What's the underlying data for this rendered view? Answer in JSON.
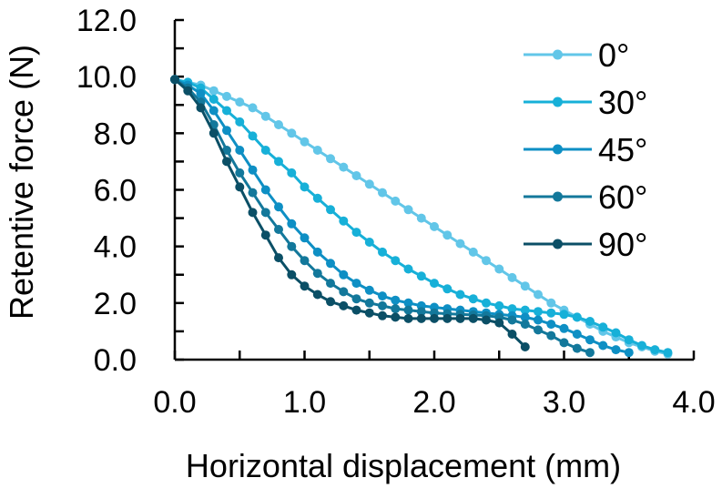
{
  "chart_data": {
    "type": "line",
    "title": "",
    "xlabel": "Horizontal displacement (mm)",
    "ylabel": "Retentive force (N)",
    "xlim": [
      0,
      4
    ],
    "ylim": [
      0,
      12
    ],
    "xticks": [
      0,
      1,
      2,
      3,
      4
    ],
    "yticks": [
      0,
      2,
      4,
      6,
      8,
      10,
      12
    ],
    "xtick_labels": [
      "0.0",
      "1.0",
      "2.0",
      "3.0",
      "4.0"
    ],
    "ytick_labels": [
      "0.0",
      "2.0",
      "4.0",
      "6.0",
      "8.0",
      "10.0",
      "12.0"
    ],
    "grid": false,
    "legend_position": "top-right",
    "series": [
      {
        "name": "0°",
        "color": "#62c6e8",
        "x": [
          0,
          0.1,
          0.2,
          0.3,
          0.4,
          0.5,
          0.6,
          0.7,
          0.8,
          0.9,
          1.0,
          1.1,
          1.2,
          1.3,
          1.4,
          1.5,
          1.6,
          1.7,
          1.8,
          1.9,
          2.0,
          2.1,
          2.2,
          2.3,
          2.4,
          2.5,
          2.6,
          2.7,
          2.8,
          2.9,
          3.0,
          3.1,
          3.2,
          3.3,
          3.4,
          3.5,
          3.6,
          3.7,
          3.8
        ],
        "y": [
          9.9,
          9.8,
          9.7,
          9.5,
          9.3,
          9.1,
          8.9,
          8.6,
          8.3,
          8.0,
          7.7,
          7.4,
          7.1,
          6.8,
          6.5,
          6.2,
          5.9,
          5.6,
          5.3,
          5.0,
          4.7,
          4.4,
          4.1,
          3.8,
          3.5,
          3.2,
          2.9,
          2.6,
          2.3,
          2.0,
          1.75,
          1.5,
          1.25,
          1.0,
          0.8,
          0.6,
          0.45,
          0.3,
          0.2
        ]
      },
      {
        "name": "30°",
        "color": "#17b0d8",
        "x": [
          0,
          0.1,
          0.2,
          0.3,
          0.4,
          0.5,
          0.6,
          0.7,
          0.8,
          0.9,
          1.0,
          1.1,
          1.2,
          1.3,
          1.4,
          1.5,
          1.6,
          1.7,
          1.8,
          1.9,
          2.0,
          2.1,
          2.2,
          2.3,
          2.4,
          2.5,
          2.6,
          2.7,
          2.8,
          2.9,
          3.0,
          3.1,
          3.2,
          3.3,
          3.4,
          3.5,
          3.6,
          3.7,
          3.8
        ],
        "y": [
          9.9,
          9.8,
          9.6,
          9.2,
          8.8,
          8.4,
          7.9,
          7.4,
          7.0,
          6.6,
          6.1,
          5.7,
          5.3,
          4.9,
          4.5,
          4.15,
          3.8,
          3.5,
          3.2,
          2.95,
          2.7,
          2.5,
          2.3,
          2.15,
          2.0,
          1.9,
          1.8,
          1.75,
          1.7,
          1.65,
          1.6,
          1.5,
          1.35,
          1.15,
          0.95,
          0.7,
          0.5,
          0.35,
          0.25
        ]
      },
      {
        "name": "45°",
        "color": "#0e8fc4",
        "x": [
          0,
          0.1,
          0.2,
          0.3,
          0.4,
          0.5,
          0.6,
          0.7,
          0.8,
          0.9,
          1.0,
          1.1,
          1.2,
          1.3,
          1.4,
          1.5,
          1.6,
          1.7,
          1.8,
          1.9,
          2.0,
          2.1,
          2.2,
          2.3,
          2.4,
          2.5,
          2.6,
          2.7,
          2.8,
          2.9,
          3.0,
          3.1,
          3.2,
          3.3,
          3.4,
          3.5
        ],
        "y": [
          9.9,
          9.7,
          9.4,
          8.8,
          8.1,
          7.4,
          6.7,
          6.0,
          5.4,
          4.8,
          4.3,
          3.8,
          3.4,
          3.0,
          2.7,
          2.45,
          2.25,
          2.1,
          2.0,
          1.9,
          1.85,
          1.8,
          1.75,
          1.7,
          1.65,
          1.6,
          1.55,
          1.5,
          1.4,
          1.25,
          1.1,
          0.9,
          0.7,
          0.5,
          0.35,
          0.25
        ]
      },
      {
        "name": "60°",
        "color": "#13789b",
        "x": [
          0,
          0.1,
          0.2,
          0.3,
          0.4,
          0.5,
          0.6,
          0.7,
          0.8,
          0.9,
          1.0,
          1.1,
          1.2,
          1.3,
          1.4,
          1.5,
          1.6,
          1.7,
          1.8,
          1.9,
          2.0,
          2.1,
          2.2,
          2.3,
          2.4,
          2.5,
          2.6,
          2.7,
          2.8,
          2.9,
          3.0,
          3.1,
          3.2
        ],
        "y": [
          9.9,
          9.6,
          9.1,
          8.3,
          7.4,
          6.6,
          5.9,
          5.2,
          4.6,
          4.0,
          3.5,
          3.05,
          2.7,
          2.4,
          2.15,
          2.0,
          1.9,
          1.8,
          1.75,
          1.7,
          1.65,
          1.62,
          1.6,
          1.58,
          1.55,
          1.5,
          1.4,
          1.25,
          1.05,
          0.85,
          0.6,
          0.4,
          0.25
        ]
      },
      {
        "name": "90°",
        "color": "#0b4f66",
        "x": [
          0,
          0.1,
          0.2,
          0.3,
          0.4,
          0.5,
          0.6,
          0.7,
          0.8,
          0.9,
          1.0,
          1.1,
          1.2,
          1.3,
          1.4,
          1.5,
          1.6,
          1.7,
          1.8,
          1.9,
          2.0,
          2.1,
          2.2,
          2.3,
          2.4,
          2.5,
          2.6,
          2.7
        ],
        "y": [
          9.9,
          9.5,
          8.9,
          8.0,
          7.0,
          6.1,
          5.2,
          4.4,
          3.6,
          3.0,
          2.6,
          2.3,
          2.05,
          1.9,
          1.75,
          1.65,
          1.55,
          1.5,
          1.45,
          1.45,
          1.45,
          1.45,
          1.45,
          1.45,
          1.4,
          1.3,
          0.9,
          0.45
        ]
      }
    ]
  }
}
